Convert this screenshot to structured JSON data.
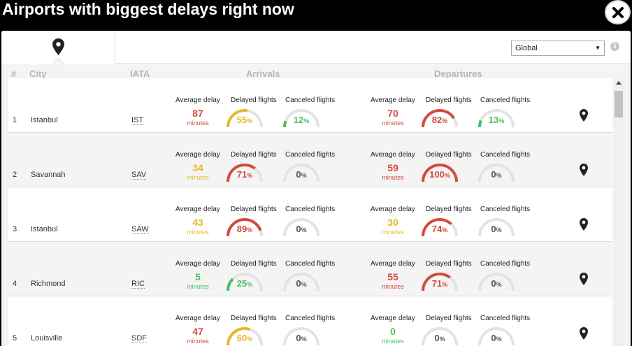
{
  "title": "Airports with biggest delays right now",
  "colors": {
    "red": "#d34a3e",
    "yellow": "#e6b82a",
    "green": "#4bbf5f",
    "track": "#e3e3e3"
  },
  "tabs": {
    "map_icon": "map-pin-icon"
  },
  "region_select": {
    "value": "Global",
    "arrow": "▼"
  },
  "info_icon": "i",
  "close_icon": "close-icon",
  "headers": {
    "rank": "#",
    "city": "City",
    "iata": "IATA",
    "arrivals": "Arrivals",
    "departures": "Departures"
  },
  "labels": {
    "avg_delay": "Average delay",
    "delayed": "Delayed flights",
    "canceled": "Canceled flights",
    "minutes": "minutes",
    "percent": "%"
  },
  "rows": [
    {
      "rank": "1",
      "city": "Istanbul",
      "iata": "IST",
      "arr": {
        "avg": "87",
        "avg_color": "red",
        "delayed": 55,
        "delayed_color": "yellow",
        "canceled": 12,
        "canceled_color": "green"
      },
      "dep": {
        "avg": "70",
        "avg_color": "red",
        "delayed": 82,
        "delayed_color": "red",
        "canceled": 13,
        "canceled_color": "green"
      }
    },
    {
      "rank": "2",
      "city": "Savannah",
      "iata": "SAV",
      "arr": {
        "avg": "34",
        "avg_color": "yellow",
        "delayed": 71,
        "delayed_color": "red",
        "canceled": 0,
        "canceled_color": "neutral"
      },
      "dep": {
        "avg": "59",
        "avg_color": "red",
        "delayed": 100,
        "delayed_color": "red",
        "canceled": 0,
        "canceled_color": "neutral"
      }
    },
    {
      "rank": "3",
      "city": "Istanbul",
      "iata": "SAW",
      "arr": {
        "avg": "43",
        "avg_color": "yellow",
        "delayed": 89,
        "delayed_color": "red",
        "canceled": 0,
        "canceled_color": "neutral"
      },
      "dep": {
        "avg": "30",
        "avg_color": "yellow",
        "delayed": 74,
        "delayed_color": "red",
        "canceled": 0,
        "canceled_color": "neutral"
      }
    },
    {
      "rank": "4",
      "city": "Richmond",
      "iata": "RIC",
      "arr": {
        "avg": "5",
        "avg_color": "green",
        "delayed": 25,
        "delayed_color": "green",
        "canceled": 0,
        "canceled_color": "neutral"
      },
      "dep": {
        "avg": "55",
        "avg_color": "red",
        "delayed": 71,
        "delayed_color": "red",
        "canceled": 0,
        "canceled_color": "neutral"
      }
    },
    {
      "rank": "5",
      "city": "Louisville",
      "iata": "SDF",
      "arr": {
        "avg": "47",
        "avg_color": "red",
        "delayed": 60,
        "delayed_color": "yellow",
        "canceled": 0,
        "canceled_color": "neutral"
      },
      "dep": {
        "avg": "0",
        "avg_color": "green",
        "delayed": 0,
        "delayed_color": "neutral",
        "canceled": 0,
        "canceled_color": "neutral"
      }
    }
  ]
}
